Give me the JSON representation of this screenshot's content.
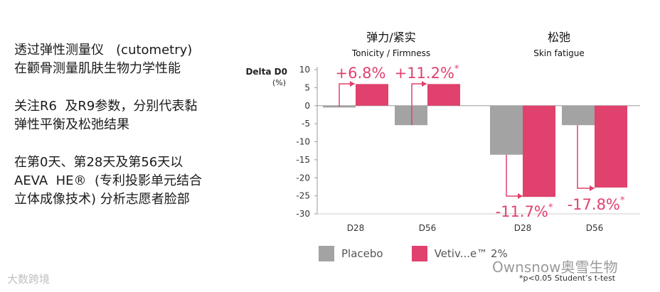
{
  "text_panel": {
    "line1": "透过弹性测量仪   (cutometry)",
    "line2": "在颧骨测量肌肤生物力学性能",
    "line3": "关注R6  及R9参数，分别代表黏",
    "line4": "弹性平衡及松弛结果",
    "line5": "在第0天、第28天及第56天以",
    "line6": "AEVA  HE®  (专利投影单元结合",
    "line7": "立体成像技术) 分析志愿者脸部"
  },
  "colors": {
    "placebo": "#a3a3a3",
    "vetiver": "#e0416d",
    "axis": "#9a9a9a",
    "text": "#1a1a1a",
    "annotation": "#e0416d"
  },
  "chart_data": {
    "type": "bar",
    "ylabel_line1": "Delta D0",
    "ylabel_line2": "(%)",
    "ylim": [
      -30,
      10
    ],
    "yticks": [
      10,
      5,
      0,
      -5,
      -10,
      -15,
      -20,
      -25,
      -30
    ],
    "ytick_labels": [
      "10",
      "5",
      "0",
      "-5",
      "-10",
      "-15",
      "-20",
      "-25",
      "-30"
    ],
    "grid": false,
    "legend_position": "bottom",
    "groups": [
      {
        "title": "弹力/紧实",
        "subtitle": "Tonicity / Firmness"
      },
      {
        "title": "松弛",
        "subtitle": "Skin fatigue"
      }
    ],
    "categories": [
      "D28",
      "D56",
      "D28",
      "D56"
    ],
    "series": [
      {
        "name": "Placebo",
        "values": [
          -0.5,
          -5.4,
          -13.6,
          -5.4
        ]
      },
      {
        "name": "Vetiv...e™ 2%",
        "values": [
          6.0,
          6.0,
          -25.3,
          -22.7
        ]
      }
    ],
    "annotations": [
      {
        "label": "+6.8%",
        "star": ""
      },
      {
        "label": "+11.2%",
        "star": "*"
      },
      {
        "label": "-11.7%",
        "star": "*"
      },
      {
        "label": "-17.8%",
        "star": "*"
      }
    ]
  },
  "footnote": "*p<0.05 Student’s t-test",
  "watermark": {
    "right": "Ownsnow奥雪生物",
    "left": "大数跨境"
  }
}
